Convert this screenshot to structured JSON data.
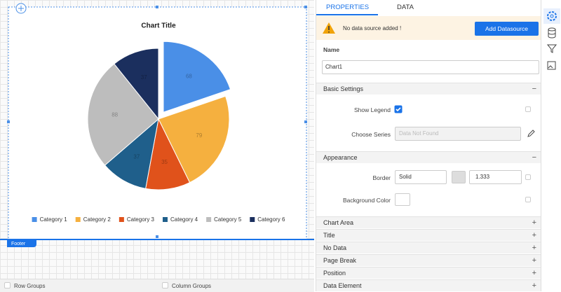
{
  "chart_data": {
    "type": "pie",
    "title": "Chart Title",
    "categories": [
      "Category 1",
      "Category 2",
      "Category 3",
      "Category 4",
      "Category 5",
      "Category 6"
    ],
    "values": [
      68,
      79,
      35,
      37,
      88,
      37
    ],
    "colors": [
      "#4a8fe7",
      "#f5b03f",
      "#e0521b",
      "#1f5f8b",
      "#bdbdbd",
      "#1b2f5e"
    ],
    "exploded": [
      true,
      false,
      false,
      false,
      false,
      false
    ],
    "legend": true
  },
  "canvas": {
    "footer": "Footer"
  },
  "bottom_bar": {
    "row_groups": "Row Groups",
    "column_groups": "Column Groups"
  },
  "panel": {
    "tabs": [
      "PROPERTIES",
      "DATA"
    ],
    "warning": {
      "message": "No data source added !",
      "button": "Add Datasource"
    },
    "name": {
      "label": "Name",
      "value": "Chart1"
    },
    "basic_settings": {
      "title": "Basic Settings",
      "show_legend": {
        "label": "Show Legend",
        "checked": true
      },
      "choose_series": {
        "label": "Choose Series",
        "placeholder": "Data Not Found"
      }
    },
    "appearance": {
      "title": "Appearance",
      "border": {
        "label": "Border",
        "style": "Solid",
        "width": 1.333
      },
      "background_color": {
        "label": "Background Color"
      }
    },
    "sections": [
      "Chart Area",
      "Title",
      "No Data",
      "Page Break",
      "Position",
      "Data Element"
    ]
  }
}
